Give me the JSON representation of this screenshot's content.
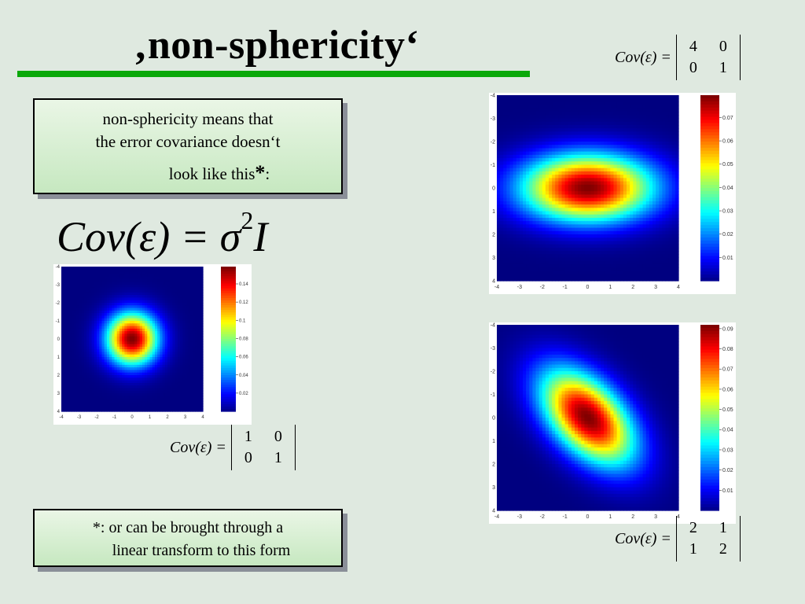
{
  "slide": {
    "title": "‚non-sphericity‘",
    "box1": {
      "line1": "non-sphericity means that",
      "line2": "the error covariance doesn‘t",
      "line3": "look like this",
      "asterisk": "*",
      "colon": ":"
    },
    "big_equation": {
      "lhs": "Cov(ε) = σ",
      "power": "2",
      "rhs": "I"
    },
    "box2": {
      "line1": "*: or can be brought through a",
      "line2": "linear transform to this form"
    }
  },
  "equations": {
    "lhs": "Cov(ε) =",
    "identity": [
      "1",
      "0",
      "0",
      "1"
    ],
    "diagonal": [
      "4",
      "0",
      "0",
      "1"
    ],
    "correlated": [
      "2",
      "1",
      "1",
      "2"
    ]
  },
  "chart_data": [
    {
      "type": "heatmap",
      "covariance": [
        [
          1,
          0
        ],
        [
          0,
          1
        ]
      ],
      "xlim": [
        -4,
        4
      ],
      "ylim": [
        -4,
        4
      ],
      "x_ticks": [
        "-4",
        "-3",
        "-2",
        "-1",
        "0",
        "1",
        "2",
        "3",
        "4"
      ],
      "y_ticks": [
        "-4",
        "-3",
        "-2",
        "-1",
        "0",
        "1",
        "2",
        "3",
        "4"
      ],
      "colorbar_ticks": [
        "0.14",
        "0.12",
        "0.1",
        "0.08",
        "0.06",
        "0.04",
        "0.02"
      ],
      "colorbar_max": 0.159
    },
    {
      "type": "heatmap",
      "covariance": [
        [
          4,
          0
        ],
        [
          0,
          1
        ]
      ],
      "xlim": [
        -4,
        4
      ],
      "ylim": [
        -4,
        4
      ],
      "x_ticks": [
        "-4",
        "-3",
        "-2",
        "-1",
        "0",
        "1",
        "2",
        "3",
        "4"
      ],
      "y_ticks": [
        "-4",
        "-3",
        "-2",
        "-1",
        "0",
        "1",
        "2",
        "3",
        "4"
      ],
      "colorbar_ticks": [
        "0.07",
        "0.06",
        "0.05",
        "0.04",
        "0.03",
        "0.02",
        "0.01"
      ],
      "colorbar_max": 0.0796
    },
    {
      "type": "heatmap",
      "covariance": [
        [
          2,
          1
        ],
        [
          1,
          2
        ]
      ],
      "xlim": [
        -4,
        4
      ],
      "ylim": [
        -4,
        4
      ],
      "x_ticks": [
        "-4",
        "-3",
        "-2",
        "-1",
        "0",
        "1",
        "2",
        "3",
        "4"
      ],
      "y_ticks": [
        "-4",
        "-3",
        "-2",
        "-1",
        "0",
        "1",
        "2",
        "3",
        "4"
      ],
      "colorbar_ticks": [
        "0.09",
        "0.08",
        "0.07",
        "0.06",
        "0.05",
        "0.04",
        "0.03",
        "0.02",
        "0.01"
      ],
      "colorbar_max": 0.0919
    }
  ],
  "colors": {
    "rule": "#0aa80a",
    "background": "#dfe9e0",
    "box_top": "#eaf6e6",
    "box_bottom": "#c6e8c0"
  }
}
